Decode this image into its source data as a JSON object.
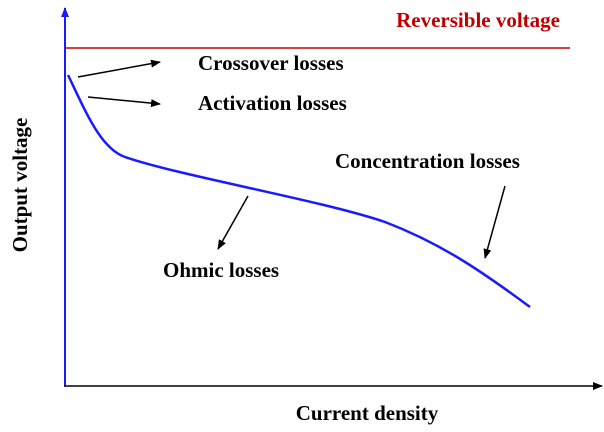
{
  "title": "Reversible voltage",
  "labels": {
    "crossover": "Crossover losses",
    "activation": "Activation losses",
    "concentration": "Concentration losses",
    "ohmic": "Ohmic losses"
  },
  "axes": {
    "y_label": "Output voltage",
    "x_label": "Current density"
  }
}
